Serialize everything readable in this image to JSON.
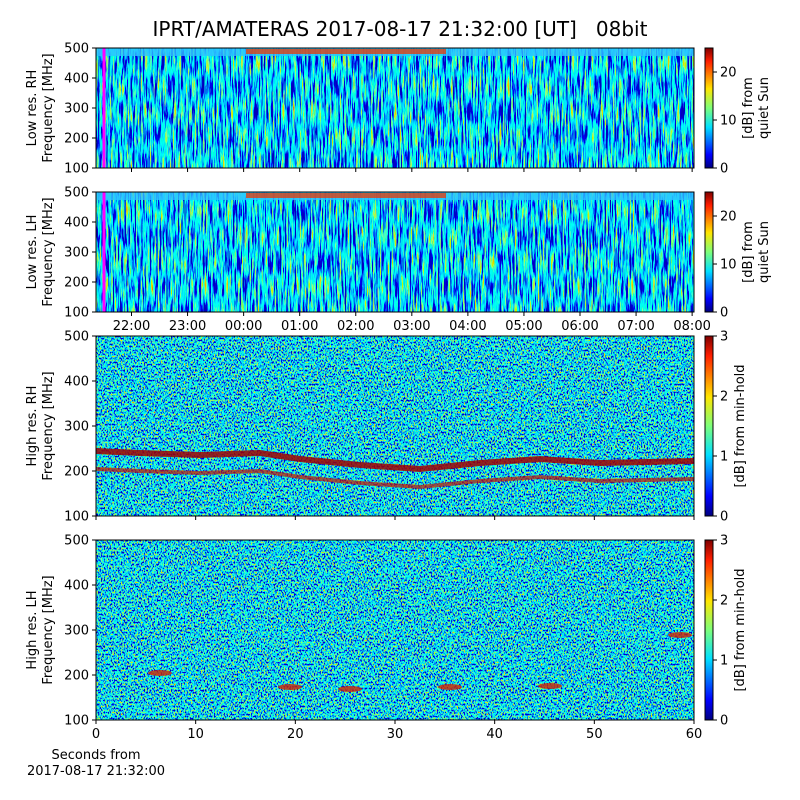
{
  "title": "IPRT/AMATERAS 2017-08-17 21:32:00 [UT]   08bit",
  "chart_data": [
    {
      "type": "heatmap",
      "ylabel": [
        "Low res. RH",
        "Frequency [MHz]"
      ],
      "ylim": [
        100,
        500
      ],
      "yticks": [
        100,
        200,
        300,
        400,
        500
      ],
      "xlim": [
        "21:22",
        "08:02"
      ],
      "xticks": [
        "22:00",
        "23:00",
        "00:00",
        "01:00",
        "02:00",
        "03:00",
        "04:00",
        "05:00",
        "06:00",
        "07:00",
        "08:00"
      ],
      "show_xticklabels": false,
      "colorbar": {
        "label": [
          "[dB] from",
          "quiet Sun"
        ],
        "lim": [
          0,
          25
        ],
        "ticks": [
          0,
          10,
          20
        ],
        "colormap": "jet"
      }
    },
    {
      "type": "heatmap",
      "ylabel": [
        "Low res. LH",
        "Frequency [MHz]"
      ],
      "ylim": [
        100,
        500
      ],
      "yticks": [
        100,
        200,
        300,
        400,
        500
      ],
      "xlim": [
        "21:22",
        "08:02"
      ],
      "xticks": [
        "22:00",
        "23:00",
        "00:00",
        "01:00",
        "02:00",
        "03:00",
        "04:00",
        "05:00",
        "06:00",
        "07:00",
        "08:00"
      ],
      "show_xticklabels": true,
      "colorbar": {
        "label": [
          "[dB] from",
          "quiet Sun"
        ],
        "lim": [
          0,
          25
        ],
        "ticks": [
          0,
          10,
          20
        ],
        "colormap": "jet"
      }
    },
    {
      "type": "heatmap",
      "ylabel": [
        "High res. RH",
        "Frequency [MHz]"
      ],
      "ylim": [
        100,
        500
      ],
      "yticks": [
        100,
        200,
        300,
        400,
        500
      ],
      "xlim": [
        0,
        60
      ],
      "xticks": [
        0,
        10,
        20,
        30,
        40,
        50,
        60
      ],
      "show_xticklabels": false,
      "colorbar": {
        "label": [
          "[dB] from min-hold"
        ],
        "lim": [
          0,
          3
        ],
        "ticks": [
          0,
          1,
          2,
          3
        ],
        "colormap": "jet"
      }
    },
    {
      "type": "heatmap",
      "ylabel": [
        "High res. LH",
        "Frequency [MHz]"
      ],
      "ylim": [
        100,
        500
      ],
      "yticks": [
        100,
        200,
        300,
        400,
        500
      ],
      "xlim": [
        0,
        60
      ],
      "xticks": [
        0,
        10,
        20,
        30,
        40,
        50,
        60
      ],
      "show_xticklabels": true,
      "xlabel": [
        "Seconds from",
        "2017-08-17 21:32:00"
      ],
      "colorbar": {
        "label": [
          "[dB] from min-hold"
        ],
        "lim": [
          0,
          3
        ],
        "ticks": [
          0,
          1,
          2,
          3
        ],
        "colormap": "jet"
      }
    }
  ]
}
